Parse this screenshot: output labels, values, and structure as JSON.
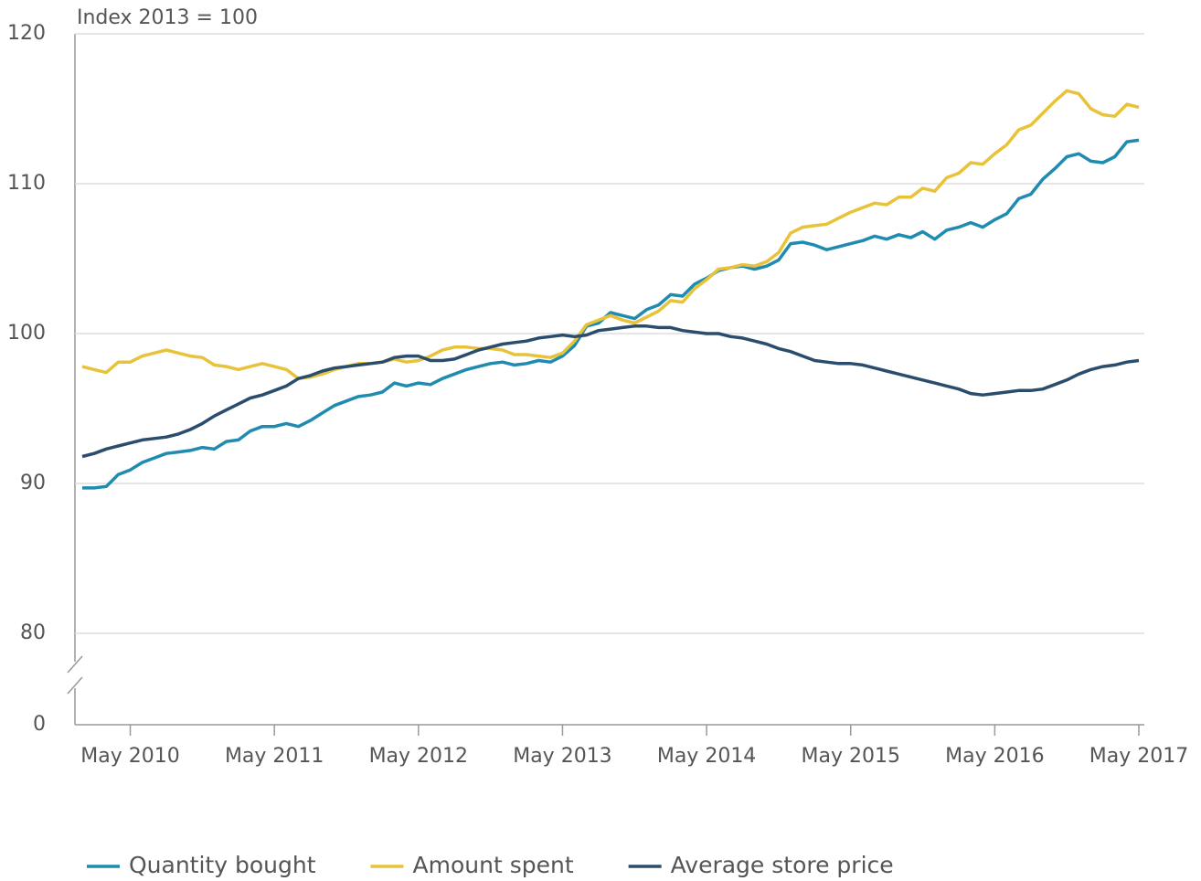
{
  "chart_data": {
    "type": "line",
    "title": "Index 2013 = 100",
    "x": [
      "2010-01",
      "2010-02",
      "2010-03",
      "2010-04",
      "2010-05",
      "2010-06",
      "2010-07",
      "2010-08",
      "2010-09",
      "2010-10",
      "2010-11",
      "2010-12",
      "2011-01",
      "2011-02",
      "2011-03",
      "2011-04",
      "2011-05",
      "2011-06",
      "2011-07",
      "2011-08",
      "2011-09",
      "2011-10",
      "2011-11",
      "2011-12",
      "2012-01",
      "2012-02",
      "2012-03",
      "2012-04",
      "2012-05",
      "2012-06",
      "2012-07",
      "2012-08",
      "2012-09",
      "2012-10",
      "2012-11",
      "2012-12",
      "2013-01",
      "2013-02",
      "2013-03",
      "2013-04",
      "2013-05",
      "2013-06",
      "2013-07",
      "2013-08",
      "2013-09",
      "2013-10",
      "2013-11",
      "2013-12",
      "2014-01",
      "2014-02",
      "2014-03",
      "2014-04",
      "2014-05",
      "2014-06",
      "2014-07",
      "2014-08",
      "2014-09",
      "2014-10",
      "2014-11",
      "2014-12",
      "2015-01",
      "2015-02",
      "2015-03",
      "2015-04",
      "2015-05",
      "2015-06",
      "2015-07",
      "2015-08",
      "2015-09",
      "2015-10",
      "2015-11",
      "2015-12",
      "2016-01",
      "2016-02",
      "2016-03",
      "2016-04",
      "2016-05",
      "2016-06",
      "2016-07",
      "2016-08",
      "2016-09",
      "2016-10",
      "2016-11",
      "2016-12",
      "2017-01",
      "2017-02",
      "2017-03",
      "2017-04",
      "2017-05"
    ],
    "series": [
      {
        "name": "Quantity bought",
        "color": "#1f8bb0",
        "values": [
          89.7,
          89.7,
          89.8,
          90.6,
          90.9,
          91.4,
          91.7,
          92.0,
          92.1,
          92.2,
          92.4,
          92.3,
          92.8,
          92.9,
          93.5,
          93.8,
          93.8,
          94.0,
          93.8,
          94.2,
          94.7,
          95.2,
          95.5,
          95.8,
          95.9,
          96.1,
          96.7,
          96.5,
          96.7,
          96.6,
          97.0,
          97.3,
          97.6,
          97.8,
          98.0,
          98.1,
          97.9,
          98.0,
          98.2,
          98.1,
          98.5,
          99.2,
          100.5,
          100.7,
          101.4,
          101.2,
          101.0,
          101.6,
          101.9,
          102.6,
          102.5,
          103.3,
          103.7,
          104.2,
          104.4,
          104.5,
          104.3,
          104.5,
          104.9,
          106.0,
          106.1,
          105.9,
          105.6,
          105.8,
          106.0,
          106.2,
          106.5,
          106.3,
          106.6,
          106.4,
          106.8,
          106.3,
          106.9,
          107.1,
          107.4,
          107.1,
          107.6,
          108.0,
          109.0,
          109.3,
          110.3,
          111.0,
          111.8,
          112.0,
          111.5,
          111.4,
          111.8,
          112.8,
          112.9
        ]
      },
      {
        "name": "Amount spent",
        "color": "#e8c33a",
        "values": [
          97.8,
          97.6,
          97.4,
          98.1,
          98.1,
          98.5,
          98.7,
          98.9,
          98.7,
          98.5,
          98.4,
          97.9,
          97.8,
          97.6,
          97.8,
          98.0,
          97.8,
          97.6,
          97.0,
          97.1,
          97.3,
          97.6,
          97.8,
          98.0,
          98.0,
          98.1,
          98.3,
          98.1,
          98.2,
          98.5,
          98.9,
          99.1,
          99.1,
          99.0,
          99.0,
          98.9,
          98.6,
          98.6,
          98.5,
          98.4,
          98.7,
          99.5,
          100.6,
          100.9,
          101.2,
          100.9,
          100.7,
          101.1,
          101.5,
          102.2,
          102.1,
          103.0,
          103.6,
          104.3,
          104.4,
          104.6,
          104.5,
          104.8,
          105.4,
          106.7,
          107.1,
          107.2,
          107.3,
          107.7,
          108.1,
          108.4,
          108.7,
          108.6,
          109.1,
          109.1,
          109.7,
          109.5,
          110.4,
          110.7,
          111.4,
          111.3,
          112.0,
          112.6,
          113.6,
          113.9,
          114.7,
          115.5,
          116.2,
          116.0,
          115.0,
          114.6,
          114.5,
          115.3,
          115.1
        ]
      },
      {
        "name": "Average store price",
        "color": "#2a4d6e",
        "values": [
          91.8,
          92.0,
          92.3,
          92.5,
          92.7,
          92.9,
          93.0,
          93.1,
          93.3,
          93.6,
          94.0,
          94.5,
          94.9,
          95.3,
          95.7,
          95.9,
          96.2,
          96.5,
          97.0,
          97.2,
          97.5,
          97.7,
          97.8,
          97.9,
          98.0,
          98.1,
          98.4,
          98.5,
          98.5,
          98.2,
          98.2,
          98.3,
          98.6,
          98.9,
          99.1,
          99.3,
          99.4,
          99.5,
          99.7,
          99.8,
          99.9,
          99.8,
          99.9,
          100.2,
          100.3,
          100.4,
          100.5,
          100.5,
          100.4,
          100.4,
          100.2,
          100.1,
          100.0,
          100.0,
          99.8,
          99.7,
          99.5,
          99.3,
          99.0,
          98.8,
          98.5,
          98.2,
          98.1,
          98.0,
          98.0,
          97.9,
          97.7,
          97.5,
          97.3,
          97.1,
          96.9,
          96.7,
          96.5,
          96.3,
          96.0,
          95.9,
          96.0,
          96.1,
          96.2,
          96.2,
          96.3,
          96.6,
          96.9,
          97.3,
          97.6,
          97.8,
          97.9,
          98.1,
          98.2
        ]
      }
    ],
    "xlim": [
      "2010-01",
      "2017-05"
    ],
    "xticks": [
      {
        "value": "2010-05",
        "label": "May 2010"
      },
      {
        "value": "2011-05",
        "label": "May 2011"
      },
      {
        "value": "2012-05",
        "label": "May 2012"
      },
      {
        "value": "2013-05",
        "label": "May 2013"
      },
      {
        "value": "2014-05",
        "label": "May 2014"
      },
      {
        "value": "2015-05",
        "label": "May 2015"
      },
      {
        "value": "2016-05",
        "label": "May 2016"
      },
      {
        "value": "2017-05",
        "label": "May 2017"
      }
    ],
    "ylim": [
      80,
      120
    ],
    "yticks": [
      0,
      80,
      90,
      100,
      110,
      120
    ],
    "axis_break": true,
    "grid": true,
    "legend": "bottom"
  }
}
